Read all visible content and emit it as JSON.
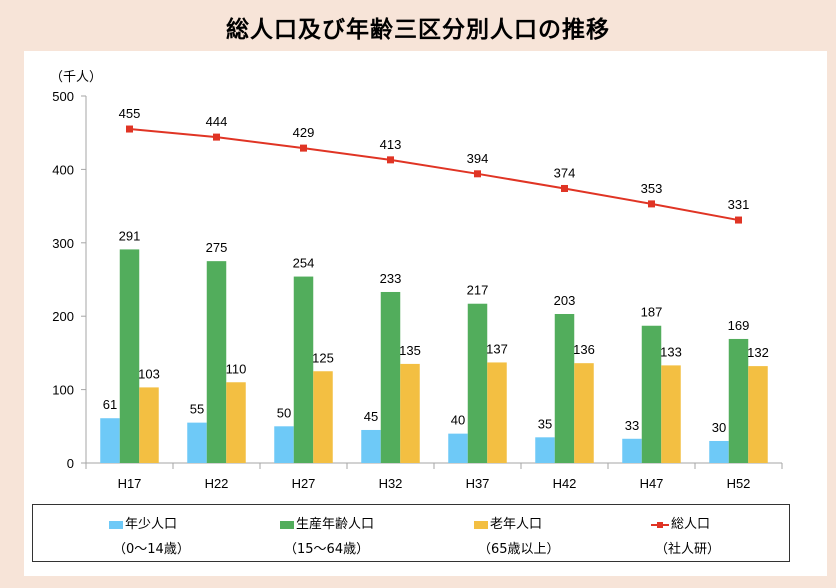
{
  "title": "総人口及び年齢三区分別人口の推移",
  "chart_data": {
    "type": "bar",
    "title": "総人口及び年齢三区分別人口の推移",
    "ylabel": "（千人）",
    "xlabel": "",
    "ylim": [
      0,
      500
    ],
    "yticks": [
      0,
      100,
      200,
      300,
      400,
      500
    ],
    "grid": false,
    "categories": [
      "H17",
      "H22",
      "H27",
      "H32",
      "H37",
      "H42",
      "H47",
      "H52"
    ],
    "series": [
      {
        "name": "年少人口",
        "sub": "（0〜14歳）",
        "type": "bar",
        "color": "#6ec9f7",
        "values": [
          61,
          55,
          50,
          45,
          40,
          35,
          33,
          30
        ]
      },
      {
        "name": "生産年齢人口",
        "sub": "（15〜64歳）",
        "type": "bar",
        "color": "#52ad5c",
        "values": [
          291,
          275,
          254,
          233,
          217,
          203,
          187,
          169
        ]
      },
      {
        "name": "老年人口",
        "sub": "（65歳以上）",
        "type": "bar",
        "color": "#f3bf42",
        "values": [
          103,
          110,
          125,
          135,
          137,
          136,
          133,
          132
        ]
      },
      {
        "name": "総人口",
        "sub": "（社人研）",
        "type": "line",
        "color": "#e03424",
        "values": [
          455,
          444,
          429,
          413,
          394,
          374,
          353,
          331
        ]
      }
    ],
    "legend_position": "bottom"
  }
}
